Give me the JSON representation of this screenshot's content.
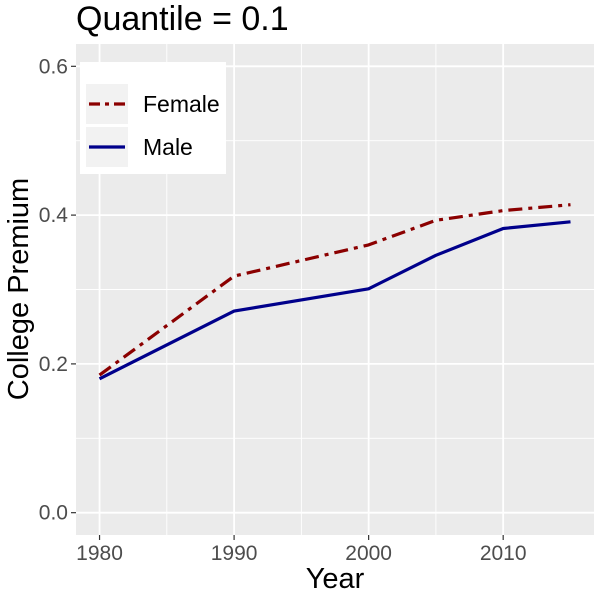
{
  "chart_data": {
    "type": "line",
    "title": "Quantile = 0.1",
    "xlabel": "Year",
    "ylabel": "College Premium",
    "xlim": [
      1978.25,
      2016.75
    ],
    "ylim": [
      -0.03,
      0.63
    ],
    "x_ticks": [
      1980,
      1990,
      2000,
      2010
    ],
    "y_ticks": [
      0.0,
      0.2,
      0.4,
      0.6
    ],
    "x_tick_labels": [
      "1980",
      "1990",
      "2000",
      "2010"
    ],
    "y_tick_labels": [
      "0.0",
      "0.2",
      "0.4",
      "0.6"
    ],
    "grid": true,
    "legend_position": "top-left",
    "series": [
      {
        "name": "Female",
        "color": "#8B0000",
        "line_style": "dashdot",
        "x": [
          1980,
          1990,
          2000,
          2005,
          2010,
          2015
        ],
        "y": [
          0.185,
          0.318,
          0.36,
          0.393,
          0.406,
          0.414
        ]
      },
      {
        "name": "Male",
        "color": "#00008B",
        "line_style": "solid",
        "x": [
          1980,
          1990,
          2000,
          2005,
          2010,
          2015
        ],
        "y": [
          0.18,
          0.271,
          0.301,
          0.346,
          0.382,
          0.391
        ]
      }
    ]
  }
}
